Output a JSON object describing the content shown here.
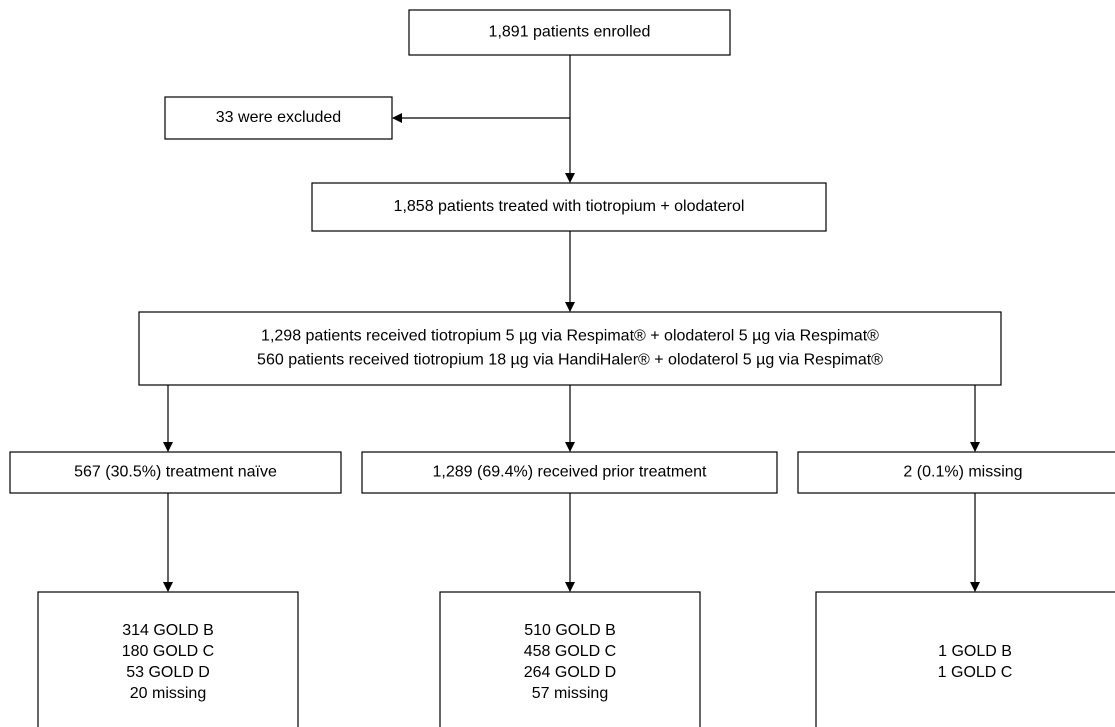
{
  "nodes": [
    {
      "lines": [
        "1,891 patients enrolled"
      ]
    },
    {
      "lines": [
        "33 were excluded"
      ]
    },
    {
      "lines": [
        "1,858 patients treated with tiotropium + olodaterol"
      ]
    },
    {
      "lines": [
        "1,298 patients received tiotropium 5 µg via Respimat® + olodaterol 5 µg via Respimat®",
        "560 patients received tiotropium 18 µg via HandiHaler® + olodaterol 5 µg via Respimat®"
      ]
    },
    {
      "lines": [
        "567 (30.5%) treatment naïve"
      ]
    },
    {
      "lines": [
        "1,289 (69.4%) received prior treatment"
      ]
    },
    {
      "lines": [
        "2 (0.1%) missing"
      ]
    },
    {
      "lines": [
        "314 GOLD B",
        "180 GOLD C",
        "53 GOLD D",
        "20 missing"
      ]
    },
    {
      "lines": [
        "510 GOLD B",
        "458 GOLD C",
        "264 GOLD D",
        "57 missing"
      ]
    },
    {
      "lines": [
        "1 GOLD B",
        "1 GOLD C"
      ]
    }
  ]
}
